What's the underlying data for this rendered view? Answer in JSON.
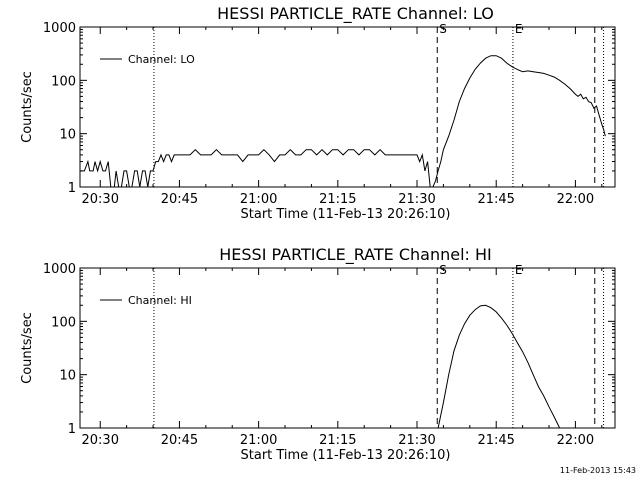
{
  "footer": {
    "timestamp": "11-Feb-2013 15:43"
  },
  "chart_data": [
    {
      "type": "line",
      "title": "HESSI PARTICLE_RATE Channel: LO",
      "xlabel": "Start Time (11-Feb-13 20:26:10)",
      "ylabel": "Counts/sec",
      "y_scale": "log",
      "xlim": [
        "20:26:10",
        "22:07:30"
      ],
      "ylim": [
        1,
        1000
      ],
      "x_ticks": [
        "20:30",
        "20:45",
        "21:00",
        "21:15",
        "21:30",
        "21:45",
        "22:00"
      ],
      "y_ticks": [
        "1",
        "10",
        "100",
        "1000"
      ],
      "legend": {
        "label": "Channel: LO",
        "position": "top-left"
      },
      "markers": [
        {
          "time": "20:40:10",
          "style": "dotted",
          "label": ""
        },
        {
          "time": "21:33:50",
          "style": "dashed",
          "label": "S"
        },
        {
          "time": "21:48:10",
          "style": "dotted",
          "label": "E"
        },
        {
          "time": "22:03:40",
          "style": "dashed",
          "label": ""
        },
        {
          "time": "22:05:20",
          "style": "dotted",
          "label": ""
        }
      ],
      "series": [
        {
          "name": "Channel: LO",
          "points": [
            [
              "20:26:10",
              2
            ],
            [
              "20:27:00",
              2
            ],
            [
              "20:27:40",
              3
            ],
            [
              "20:28:00",
              2
            ],
            [
              "20:28:40",
              2
            ],
            [
              "20:29:00",
              3
            ],
            [
              "20:29:30",
              2
            ],
            [
              "20:30:00",
              3
            ],
            [
              "20:30:30",
              2
            ],
            [
              "20:31:00",
              2
            ],
            [
              "20:31:30",
              3
            ],
            [
              "20:32:00",
              1
            ],
            [
              "20:32:40",
              1
            ],
            [
              "20:33:00",
              2
            ],
            [
              "20:33:30",
              1
            ],
            [
              "20:34:00",
              1
            ],
            [
              "20:34:30",
              2
            ],
            [
              "20:35:00",
              2
            ],
            [
              "20:35:30",
              1
            ],
            [
              "20:36:00",
              1
            ],
            [
              "20:36:30",
              2
            ],
            [
              "20:37:00",
              2
            ],
            [
              "20:37:30",
              1
            ],
            [
              "20:38:00",
              2
            ],
            [
              "20:38:30",
              2
            ],
            [
              "20:39:00",
              1
            ],
            [
              "20:39:30",
              2
            ],
            [
              "20:40:00",
              2
            ],
            [
              "20:40:30",
              3
            ],
            [
              "20:41:00",
              3
            ],
            [
              "20:41:30",
              4
            ],
            [
              "20:42:00",
              3
            ],
            [
              "20:42:30",
              4
            ],
            [
              "20:43:00",
              4
            ],
            [
              "20:43:30",
              3
            ],
            [
              "20:44:00",
              4
            ],
            [
              "20:44:30",
              4
            ],
            [
              "20:45:00",
              4
            ],
            [
              "20:46:00",
              4
            ],
            [
              "20:47:00",
              4
            ],
            [
              "20:48:00",
              5
            ],
            [
              "20:49:00",
              4
            ],
            [
              "20:50:00",
              4
            ],
            [
              "20:51:00",
              4
            ],
            [
              "20:52:00",
              5
            ],
            [
              "20:53:00",
              4
            ],
            [
              "20:54:00",
              4
            ],
            [
              "20:55:00",
              4
            ],
            [
              "20:56:00",
              4
            ],
            [
              "20:57:00",
              3
            ],
            [
              "20:58:00",
              4
            ],
            [
              "20:59:00",
              4
            ],
            [
              "21:00:00",
              4
            ],
            [
              "21:01:00",
              5
            ],
            [
              "21:02:00",
              4
            ],
            [
              "21:03:00",
              3
            ],
            [
              "21:04:00",
              4
            ],
            [
              "21:05:00",
              4
            ],
            [
              "21:06:00",
              5
            ],
            [
              "21:07:00",
              4
            ],
            [
              "21:08:00",
              4
            ],
            [
              "21:09:00",
              5
            ],
            [
              "21:10:00",
              5
            ],
            [
              "21:11:00",
              4
            ],
            [
              "21:12:00",
              5
            ],
            [
              "21:13:00",
              4
            ],
            [
              "21:14:00",
              5
            ],
            [
              "21:15:00",
              5
            ],
            [
              "21:16:00",
              4
            ],
            [
              "21:17:00",
              5
            ],
            [
              "21:18:00",
              5
            ],
            [
              "21:19:00",
              4
            ],
            [
              "21:20:00",
              5
            ],
            [
              "21:21:00",
              5
            ],
            [
              "21:22:00",
              4
            ],
            [
              "21:23:00",
              5
            ],
            [
              "21:24:00",
              4
            ],
            [
              "21:25:00",
              4
            ],
            [
              "21:26:00",
              4
            ],
            [
              "21:27:00",
              4
            ],
            [
              "21:28:00",
              4
            ],
            [
              "21:29:00",
              4
            ],
            [
              "21:30:00",
              4
            ],
            [
              "21:30:30",
              3
            ],
            [
              "21:31:00",
              4
            ],
            [
              "21:31:30",
              2
            ],
            [
              "21:32:00",
              3
            ],
            [
              "21:32:30",
              1
            ],
            [
              "21:33:00",
              1
            ],
            [
              "21:33:30",
              1.3
            ],
            [
              "21:34:00",
              2
            ],
            [
              "21:34:30",
              3
            ],
            [
              "21:35:00",
              5
            ],
            [
              "21:36:00",
              9
            ],
            [
              "21:37:00",
              18
            ],
            [
              "21:38:00",
              40
            ],
            [
              "21:39:00",
              70
            ],
            [
              "21:40:00",
              110
            ],
            [
              "21:41:00",
              160
            ],
            [
              "21:42:00",
              210
            ],
            [
              "21:43:00",
              260
            ],
            [
              "21:44:00",
              290
            ],
            [
              "21:45:00",
              290
            ],
            [
              "21:46:00",
              260
            ],
            [
              "21:47:00",
              210
            ],
            [
              "21:48:00",
              180
            ],
            [
              "21:49:00",
              160
            ],
            [
              "21:50:00",
              145
            ],
            [
              "21:51:00",
              150
            ],
            [
              "21:52:00",
              145
            ],
            [
              "21:53:00",
              140
            ],
            [
              "21:54:00",
              135
            ],
            [
              "21:55:00",
              125
            ],
            [
              "21:56:00",
              115
            ],
            [
              "21:57:00",
              100
            ],
            [
              "21:58:00",
              85
            ],
            [
              "21:59:00",
              70
            ],
            [
              "22:00:00",
              55
            ],
            [
              "22:00:30",
              50
            ],
            [
              "22:01:00",
              55
            ],
            [
              "22:01:30",
              45
            ],
            [
              "22:02:00",
              48
            ],
            [
              "22:02:30",
              40
            ],
            [
              "22:03:00",
              38
            ],
            [
              "22:03:30",
              30
            ],
            [
              "22:04:00",
              33
            ],
            [
              "22:04:30",
              22
            ],
            [
              "22:05:00",
              15
            ],
            [
              "22:05:20",
              12
            ],
            [
              "22:05:40",
              9
            ]
          ]
        }
      ]
    },
    {
      "type": "line",
      "title": "HESSI PARTICLE_RATE Channel: HI",
      "xlabel": "Start Time (11-Feb-13 20:26:10)",
      "ylabel": "Counts/sec",
      "y_scale": "log",
      "xlim": [
        "20:26:10",
        "22:07:30"
      ],
      "ylim": [
        1,
        1000
      ],
      "x_ticks": [
        "20:30",
        "20:45",
        "21:00",
        "21:15",
        "21:30",
        "21:45",
        "22:00"
      ],
      "y_ticks": [
        "1",
        "10",
        "100",
        "1000"
      ],
      "legend": {
        "label": "Channel: HI",
        "position": "top-left"
      },
      "markers": [
        {
          "time": "20:40:10",
          "style": "dotted",
          "label": ""
        },
        {
          "time": "21:33:50",
          "style": "dashed",
          "label": "S"
        },
        {
          "time": "21:48:10",
          "style": "dotted",
          "label": "E"
        },
        {
          "time": "22:03:40",
          "style": "dashed",
          "label": ""
        },
        {
          "time": "22:05:20",
          "style": "dotted",
          "label": ""
        }
      ],
      "series": [
        {
          "name": "Channel: HI",
          "points": [
            [
              "21:34:00",
              1
            ],
            [
              "21:35:00",
              3
            ],
            [
              "21:36:00",
              10
            ],
            [
              "21:37:00",
              28
            ],
            [
              "21:38:00",
              55
            ],
            [
              "21:39:00",
              90
            ],
            [
              "21:40:00",
              130
            ],
            [
              "21:41:00",
              165
            ],
            [
              "21:42:00",
              195
            ],
            [
              "21:43:00",
              200
            ],
            [
              "21:44:00",
              180
            ],
            [
              "21:45:00",
              150
            ],
            [
              "21:46:00",
              115
            ],
            [
              "21:47:00",
              85
            ],
            [
              "21:48:00",
              60
            ],
            [
              "21:49:00",
              40
            ],
            [
              "21:50:00",
              27
            ],
            [
              "21:51:00",
              17
            ],
            [
              "21:52:00",
              10
            ],
            [
              "21:53:00",
              6
            ],
            [
              "21:54:00",
              4
            ],
            [
              "21:55:00",
              2.5
            ],
            [
              "21:56:00",
              1.6
            ],
            [
              "21:57:00",
              1
            ]
          ]
        }
      ]
    }
  ]
}
